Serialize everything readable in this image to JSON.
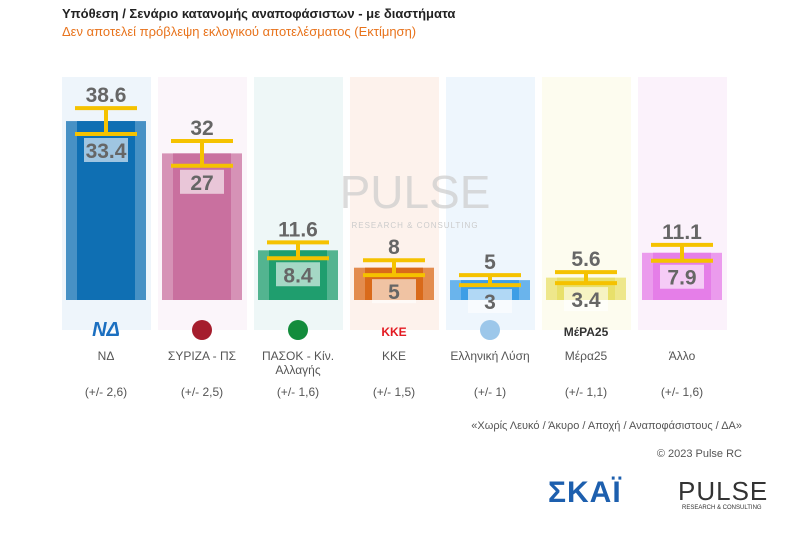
{
  "title": "Υπόθεση / Σενάριο κατανομής αναποφάσιστων - με διαστήματα",
  "subtitle": "Δεν αποτελεί πρόβλεψη εκλογικού αποτελέσματος   (Εκτίμηση)",
  "chart_data": {
    "type": "bar",
    "categories": [
      "ΝΔ",
      "ΣΥΡΙΖΑ - ΠΣ",
      "ΠΑΣΟΚ - Κίν. Αλλαγής",
      "ΚΚΕ",
      "Ελληνική Λύση",
      "Μέρα25",
      "Άλλο"
    ],
    "upper": [
      38.6,
      32,
      11.6,
      8,
      5,
      5.6,
      11.1
    ],
    "lower": [
      33.4,
      27,
      8.4,
      5,
      3,
      3.4,
      7.9
    ],
    "upper_labels": [
      "38.6",
      "32",
      "11.6",
      "8",
      "5",
      "5.6",
      "11.1"
    ],
    "lower_labels": [
      "33.4",
      "27",
      "8.4",
      "5",
      "3",
      "3.4",
      "7.9"
    ],
    "margins": [
      "(+/- 2,6)",
      "(+/- 2,5)",
      "(+/- 1,6)",
      "(+/- 1,5)",
      "(+/- 1)",
      "(+/- 1,1)",
      "(+/- 1,6)"
    ],
    "colors": [
      "#0f6fb3",
      "#c9709f",
      "#1f9e6e",
      "#d96a1a",
      "#3d9ee6",
      "#e8e06a",
      "#e57ee8"
    ],
    "panel_colors": [
      "#eef5fb",
      "#fbf5fa",
      "#eef7f7",
      "#fdf2ec",
      "#eef6fd",
      "#fdfcef",
      "#fbf2fb"
    ],
    "interval_color": "#f5c200"
  },
  "watermark": "PULSE",
  "watermark_sub": "RESEARCH & CONSULTING",
  "logos": [
    "ΝΔ",
    "ΣΥΡΙΖΑ",
    "ΠΑΣΟΚ",
    "ΚΚΕ",
    "Ελληνική Λύση",
    "ΜέΡΑ25",
    ""
  ],
  "footnote": "«Χωρίς Λευκό / Άκυρο / Αποχή / Αναποφάσιστους / ΔΑ»",
  "copyright": "© 2023 Pulse RC",
  "brand_skai": "ΣΚΑΪ",
  "brand_pulse": "PULSE",
  "brand_pulse_sub": "RESEARCH & CONSULTING"
}
